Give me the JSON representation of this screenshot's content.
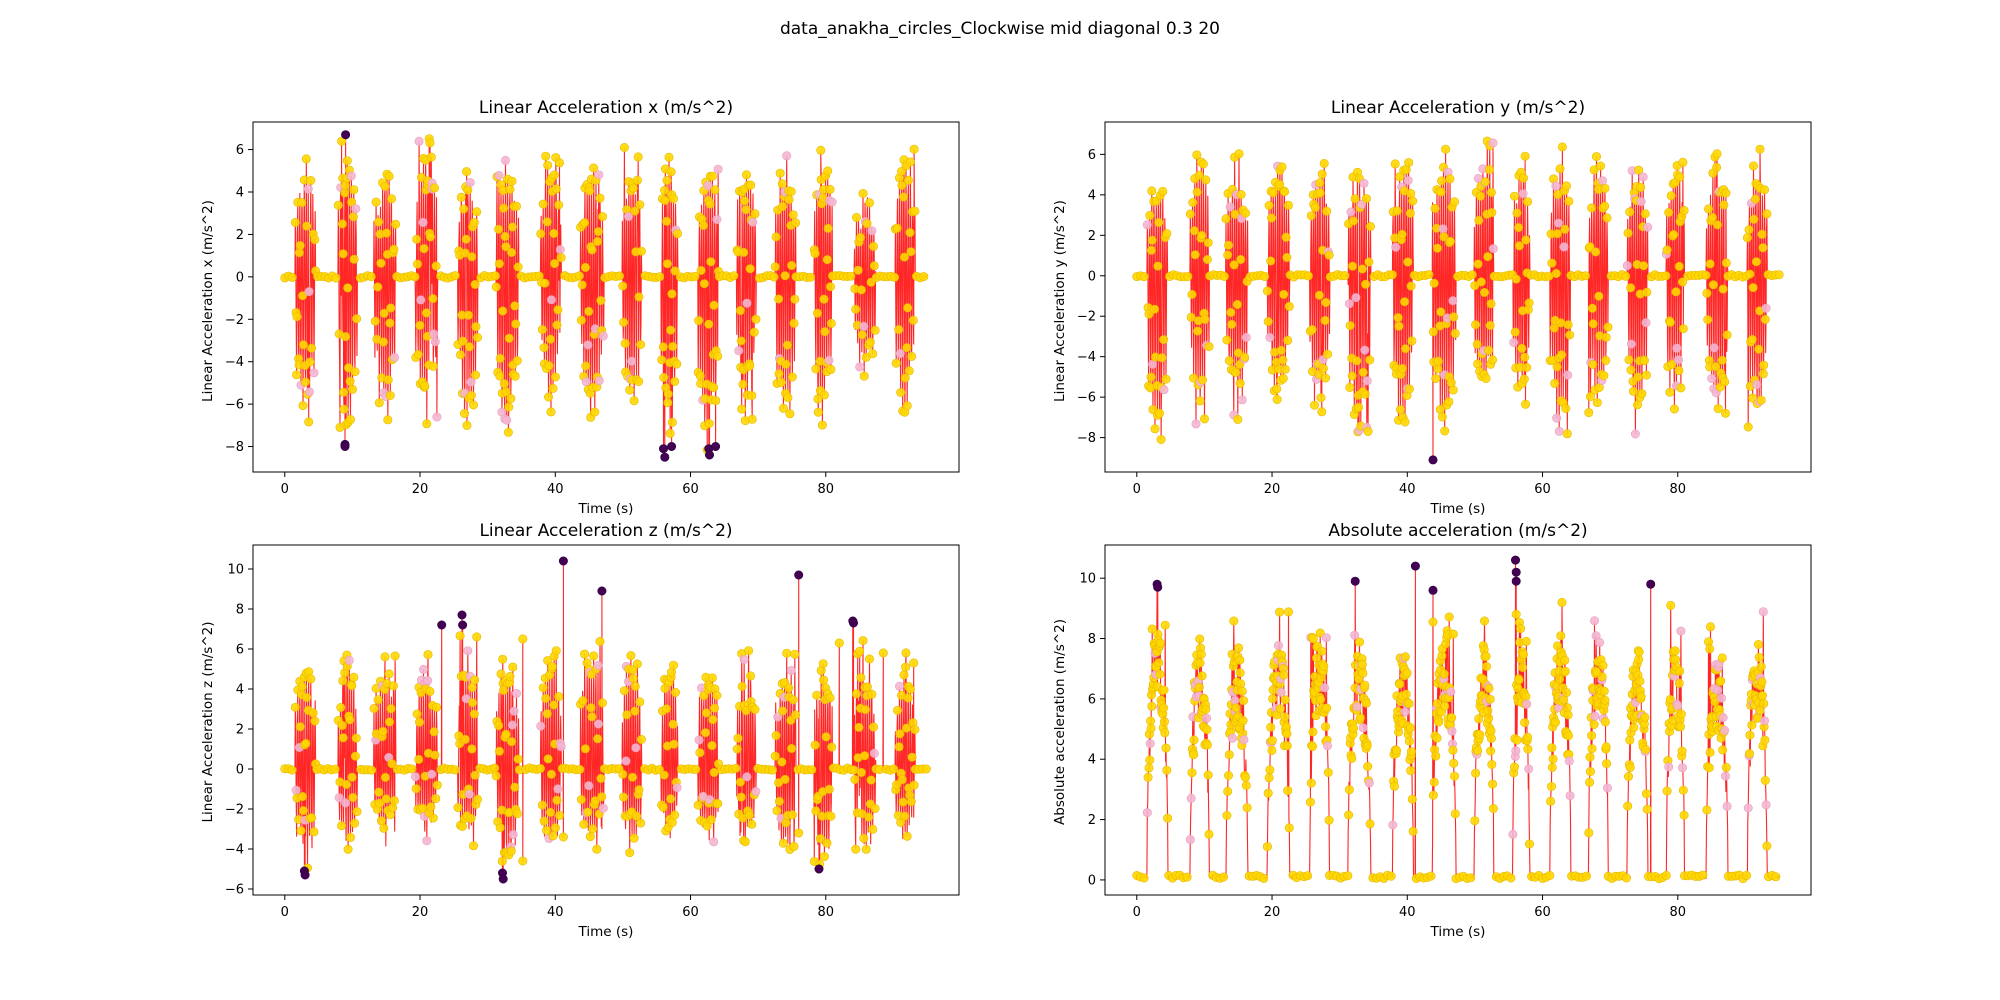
{
  "figure": {
    "suptitle": "data_anakha_circles_Clockwise mid diagonal 0.3 20"
  },
  "colors": {
    "line": "#ff0000",
    "marker_fill": "#ffd700",
    "marker_edge": "#e6b800",
    "marker_light": "#f4b6d2",
    "outlier": "#440154",
    "axes": "#000000"
  },
  "chart_data": [
    {
      "id": "ax",
      "type": "scatter",
      "title": "Linear Acceleration x (m/s^2)",
      "xlabel": "Time (s)",
      "ylabel": "Linear Acceleration x (m/s^2)",
      "xlim": [
        -4.7,
        99.7
      ],
      "ylim": [
        -9.2,
        7.3
      ],
      "xticks": [
        0,
        20,
        40,
        60,
        80
      ],
      "yticks": [
        -8,
        -6,
        -4,
        -2,
        0,
        2,
        4,
        6
      ],
      "grid": false,
      "legend": "none",
      "baseline": 0,
      "active_intervals": [
        [
          1.5,
          4.6
        ],
        [
          7.9,
          10.7
        ],
        [
          13.2,
          16.4
        ],
        [
          19.3,
          22.6
        ],
        [
          25.6,
          28.5
        ],
        [
          31.2,
          34.6
        ],
        [
          37.8,
          40.9
        ],
        [
          43.7,
          47.2
        ],
        [
          49.9,
          52.8
        ],
        [
          55.6,
          58.1
        ],
        [
          61.1,
          64.2
        ],
        [
          66.8,
          69.7
        ],
        [
          72.5,
          75.6
        ],
        [
          78.3,
          81.0
        ],
        [
          84.2,
          87.4
        ],
        [
          90.3,
          93.2
        ]
      ],
      "cycle_peaks": [
        [
          5.7,
          -7.2
        ],
        [
          6.7,
          -8.0
        ],
        [
          5.4,
          -6.8
        ],
        [
          6.6,
          -6.8
        ],
        [
          5.5,
          -7.7
        ],
        [
          5.2,
          -7.5
        ],
        [
          5.8,
          -6.6
        ],
        [
          5.5,
          -7.0
        ],
        [
          6.1,
          -6.5
        ],
        [
          5.7,
          -8.5
        ],
        [
          5.8,
          -8.4
        ],
        [
          6.1,
          -6.9
        ],
        [
          5.8,
          -7.5
        ],
        [
          6.3,
          -6.8
        ],
        [
          4.2,
          -5.5
        ],
        [
          6.4,
          -7.0
        ]
      ],
      "outliers": [
        [
          9.0,
          6.7
        ],
        [
          8.9,
          -7.9
        ],
        [
          8.9,
          -8.0
        ],
        [
          56.0,
          -8.1
        ],
        [
          56.2,
          -8.5
        ],
        [
          57.2,
          -8.0
        ],
        [
          62.7,
          -8.1
        ],
        [
          62.8,
          -8.4
        ],
        [
          63.7,
          -8.0
        ]
      ],
      "x_end": 95.0,
      "point_size": 4.2
    },
    {
      "id": "ay",
      "type": "scatter",
      "title": "Linear Acceleration y (m/s^2)",
      "xlabel": "Time (s)",
      "ylabel": "Linear Acceleration y (m/s^2)",
      "xlim": [
        -4.7,
        99.7
      ],
      "ylim": [
        -9.7,
        7.6
      ],
      "xticks": [
        0,
        20,
        40,
        60,
        80
      ],
      "yticks": [
        -8,
        -6,
        -4,
        -2,
        0,
        2,
        4,
        6
      ],
      "grid": false,
      "legend": "none",
      "baseline": 0,
      "active_intervals": [
        [
          1.5,
          4.6
        ],
        [
          7.9,
          10.7
        ],
        [
          13.2,
          16.4
        ],
        [
          19.3,
          22.6
        ],
        [
          25.6,
          28.5
        ],
        [
          31.2,
          34.6
        ],
        [
          37.8,
          40.9
        ],
        [
          43.7,
          47.2
        ],
        [
          49.9,
          52.8
        ],
        [
          55.6,
          58.1
        ],
        [
          61.1,
          64.2
        ],
        [
          66.8,
          69.7
        ],
        [
          72.5,
          75.6
        ],
        [
          78.3,
          81.0
        ],
        [
          84.2,
          87.4
        ],
        [
          90.3,
          93.2
        ]
      ],
      "cycle_peaks": [
        [
          5.0,
          -8.4
        ],
        [
          6.3,
          -7.6
        ],
        [
          6.0,
          -7.3
        ],
        [
          6.2,
          -7.1
        ],
        [
          6.6,
          -7.4
        ],
        [
          6.2,
          -8.3
        ],
        [
          6.2,
          -8.2
        ],
        [
          6.6,
          -8.0
        ],
        [
          6.9,
          -6.9
        ],
        [
          6.5,
          -7.1
        ],
        [
          6.4,
          -8.2
        ],
        [
          6.0,
          -6.9
        ],
        [
          6.1,
          -7.9
        ],
        [
          6.2,
          -7.3
        ],
        [
          6.1,
          -7.4
        ],
        [
          6.5,
          -8.0
        ]
      ],
      "outliers": [
        [
          43.8,
          -9.1
        ]
      ],
      "x_end": 95.0,
      "point_size": 4.2
    },
    {
      "id": "az",
      "type": "scatter",
      "title": "Linear Acceleration z (m/s^2)",
      "xlabel": "Time (s)",
      "ylabel": "Linear Acceleration z (m/s^2)",
      "xlim": [
        -4.7,
        99.7
      ],
      "ylim": [
        -6.3,
        11.2
      ],
      "xticks": [
        0,
        20,
        40,
        60,
        80
      ],
      "yticks": [
        -6,
        -4,
        -2,
        0,
        2,
        4,
        6,
        8,
        10
      ],
      "grid": false,
      "legend": "none",
      "baseline": 0,
      "active_intervals": [
        [
          1.5,
          4.6
        ],
        [
          7.9,
          10.7
        ],
        [
          13.2,
          16.4
        ],
        [
          19.3,
          22.6
        ],
        [
          25.6,
          28.5
        ],
        [
          31.2,
          34.6
        ],
        [
          37.8,
          40.9
        ],
        [
          43.7,
          47.2
        ],
        [
          49.9,
          52.8
        ],
        [
          55.6,
          58.1
        ],
        [
          61.1,
          64.2
        ],
        [
          66.8,
          69.7
        ],
        [
          72.5,
          75.6
        ],
        [
          78.3,
          81.0
        ],
        [
          84.2,
          87.4
        ],
        [
          90.3,
          93.2
        ]
      ],
      "cycle_peaks": [
        [
          6.1,
          -5.2
        ],
        [
          6.1,
          -4.6
        ],
        [
          6.3,
          -3.6
        ],
        [
          6.2,
          -3.5
        ],
        [
          6.7,
          -3.9
        ],
        [
          5.9,
          -5.3
        ],
        [
          6.4,
          -4.6
        ],
        [
          6.4,
          -4.3
        ],
        [
          6.6,
          -4.4
        ],
        [
          6.2,
          -4.1
        ],
        [
          6.2,
          -4.2
        ],
        [
          5.9,
          -3.6
        ],
        [
          5.8,
          -4.5
        ],
        [
          6.0,
          -5.0
        ],
        [
          6.3,
          -4.6
        ],
        [
          5.4,
          -4.2
        ]
      ],
      "outliers": [
        [
          2.9,
          -5.1
        ],
        [
          3.0,
          -5.3
        ],
        [
          23.2,
          7.2
        ],
        [
          26.2,
          7.7
        ],
        [
          26.3,
          7.2
        ],
        [
          32.2,
          -5.2
        ],
        [
          32.3,
          -5.5
        ],
        [
          41.2,
          10.4
        ],
        [
          46.9,
          8.9
        ],
        [
          76.0,
          9.7
        ],
        [
          79.0,
          -5.0
        ],
        [
          84.0,
          7.4
        ],
        [
          84.1,
          7.3
        ]
      ],
      "spikes": [
        [
          35.2,
          6.5
        ],
        [
          35.2,
          -4.6
        ],
        [
          41.2,
          -3.4
        ],
        [
          46.9,
          -3.0
        ],
        [
          76.0,
          -3.2
        ],
        [
          82.0,
          6.3
        ],
        [
          88.5,
          5.8
        ],
        [
          93.0,
          5.3
        ]
      ],
      "x_end": 95.0,
      "point_size": 4.2
    },
    {
      "id": "aabs",
      "type": "scatter",
      "title": "Absolute acceleration (m/s^2)",
      "xlabel": "Time (s)",
      "ylabel": "Absolute acceleration (m/s^2)",
      "xlim": [
        -4.7,
        99.7
      ],
      "ylim": [
        -0.5,
        11.1
      ],
      "xticks": [
        0,
        20,
        40,
        60,
        80
      ],
      "yticks": [
        0,
        2,
        4,
        6,
        8,
        10
      ],
      "grid": false,
      "legend": "none",
      "baseline": 0.1,
      "active_intervals": [
        [
          1.5,
          4.6
        ],
        [
          7.9,
          10.7
        ],
        [
          13.2,
          16.4
        ],
        [
          19.3,
          22.6
        ],
        [
          25.6,
          28.5
        ],
        [
          31.2,
          34.6
        ],
        [
          37.8,
          40.9
        ],
        [
          43.7,
          47.2
        ],
        [
          49.9,
          52.8
        ],
        [
          55.6,
          58.1
        ],
        [
          61.1,
          64.2
        ],
        [
          66.8,
          69.7
        ],
        [
          72.5,
          75.6
        ],
        [
          78.3,
          81.0
        ],
        [
          84.2,
          87.4
        ],
        [
          90.3,
          93.2
        ]
      ],
      "cycle_peaks": [
        [
          9.6,
          0
        ],
        [
          9.1,
          0
        ],
        [
          8.6,
          0
        ],
        [
          8.9,
          0
        ],
        [
          9.4,
          0
        ],
        [
          8.7,
          0
        ],
        [
          8.8,
          0
        ],
        [
          9.0,
          0
        ],
        [
          9.1,
          0
        ],
        [
          9.0,
          0
        ],
        [
          9.3,
          0
        ],
        [
          9.5,
          0
        ],
        [
          8.7,
          0
        ],
        [
          9.1,
          0
        ],
        [
          8.5,
          0
        ],
        [
          9.0,
          0
        ]
      ],
      "outliers": [
        [
          3.0,
          9.8
        ],
        [
          3.1,
          9.7
        ],
        [
          32.3,
          9.9
        ],
        [
          41.2,
          10.4
        ],
        [
          43.8,
          9.6
        ],
        [
          56.0,
          10.6
        ],
        [
          56.1,
          10.2
        ],
        [
          56.1,
          9.9
        ],
        [
          76.0,
          9.8
        ]
      ],
      "x_end": 95.0,
      "point_size": 4.2
    }
  ]
}
